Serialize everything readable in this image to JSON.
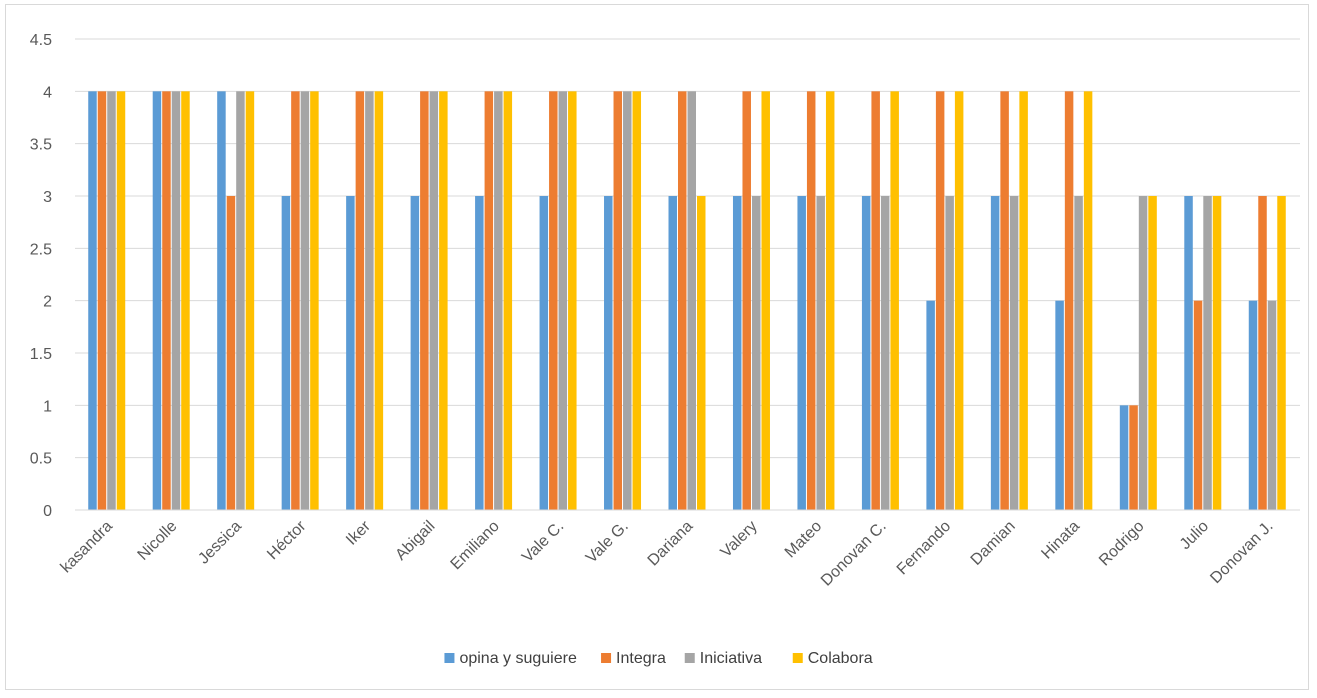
{
  "chart_data": {
    "type": "bar",
    "title": "",
    "xlabel": "",
    "ylabel": "",
    "ylim": [
      0,
      4.5
    ],
    "y_ticks": [
      "0",
      "0.5",
      "1",
      "1.5",
      "2",
      "2.5",
      "3",
      "3.5",
      "4",
      "4.5"
    ],
    "grid": true,
    "legend_position": "bottom",
    "categories": [
      "kasandra",
      "Nicolle",
      "Jessica",
      "Héctor",
      "Iker",
      "Abigail",
      "Emiliano",
      "Vale C.",
      "Vale G.",
      "Dariana",
      "Valery",
      "Mateo",
      "Donovan C.",
      "Fernando",
      "Damian",
      "Hinata",
      "Rodrigo",
      "Julio",
      "Donovan J."
    ],
    "series": [
      {
        "name": "opina y suguiere",
        "color": "#5b9bd5",
        "values": [
          4,
          4,
          4,
          3,
          3,
          3,
          3,
          3,
          3,
          3,
          3,
          3,
          3,
          2,
          3,
          2,
          1,
          3,
          2
        ]
      },
      {
        "name": "Integra",
        "color": "#ed7d31",
        "values": [
          4,
          4,
          3,
          4,
          4,
          4,
          4,
          4,
          4,
          4,
          4,
          4,
          4,
          4,
          4,
          4,
          1,
          2,
          3
        ]
      },
      {
        "name": "Iniciativa",
        "color": "#a5a5a5",
        "values": [
          4,
          4,
          4,
          4,
          4,
          4,
          4,
          4,
          4,
          4,
          3,
          3,
          3,
          3,
          3,
          3,
          3,
          3,
          2
        ]
      },
      {
        "name": "Colabora",
        "color": "#ffc000",
        "values": [
          4,
          4,
          4,
          4,
          4,
          4,
          4,
          4,
          4,
          3,
          4,
          4,
          4,
          4,
          4,
          4,
          3,
          3,
          3
        ]
      }
    ]
  }
}
